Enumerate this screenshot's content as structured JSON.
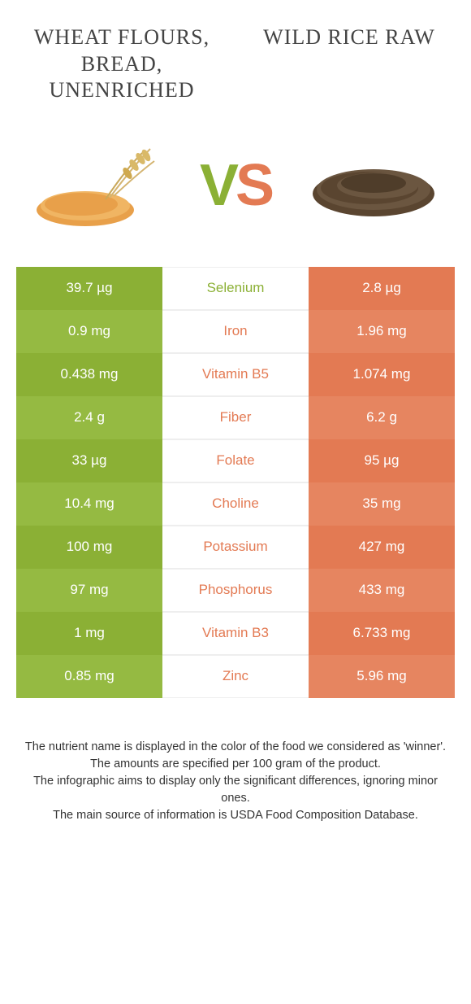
{
  "food_left": {
    "title": "WHEAT FLOURS, BREAD, UNENRICHED"
  },
  "food_right": {
    "title": "WILD RICE RAW"
  },
  "vs": {
    "v": "V",
    "s": "S"
  },
  "colors": {
    "green_base": "#8bb035",
    "green_alt": "#95ba42",
    "orange_base": "#e37a53",
    "orange_alt": "#e68560",
    "text_green": "#8bb035",
    "text_orange": "#e37a53"
  },
  "rows": [
    {
      "left": "39.7 µg",
      "label": "Selenium",
      "right": "2.8 µg",
      "winner": "left"
    },
    {
      "left": "0.9 mg",
      "label": "Iron",
      "right": "1.96 mg",
      "winner": "right"
    },
    {
      "left": "0.438 mg",
      "label": "Vitamin B5",
      "right": "1.074 mg",
      "winner": "right"
    },
    {
      "left": "2.4 g",
      "label": "Fiber",
      "right": "6.2 g",
      "winner": "right"
    },
    {
      "left": "33 µg",
      "label": "Folate",
      "right": "95 µg",
      "winner": "right"
    },
    {
      "left": "10.4 mg",
      "label": "Choline",
      "right": "35 mg",
      "winner": "right"
    },
    {
      "left": "100 mg",
      "label": "Potassium",
      "right": "427 mg",
      "winner": "right"
    },
    {
      "left": "97 mg",
      "label": "Phosphorus",
      "right": "433 mg",
      "winner": "right"
    },
    {
      "left": "1 mg",
      "label": "Vitamin B3",
      "right": "6.733 mg",
      "winner": "right"
    },
    {
      "left": "0.85 mg",
      "label": "Zinc",
      "right": "5.96 mg",
      "winner": "right"
    }
  ],
  "footer": {
    "l1": "The nutrient name is displayed in the color of the food we considered as 'winner'.",
    "l2": "The amounts are specified per 100 gram of the product.",
    "l3": "The infographic aims to display only the significant differences, ignoring minor ones.",
    "l4": "The main source of information is USDA Food Composition Database."
  }
}
